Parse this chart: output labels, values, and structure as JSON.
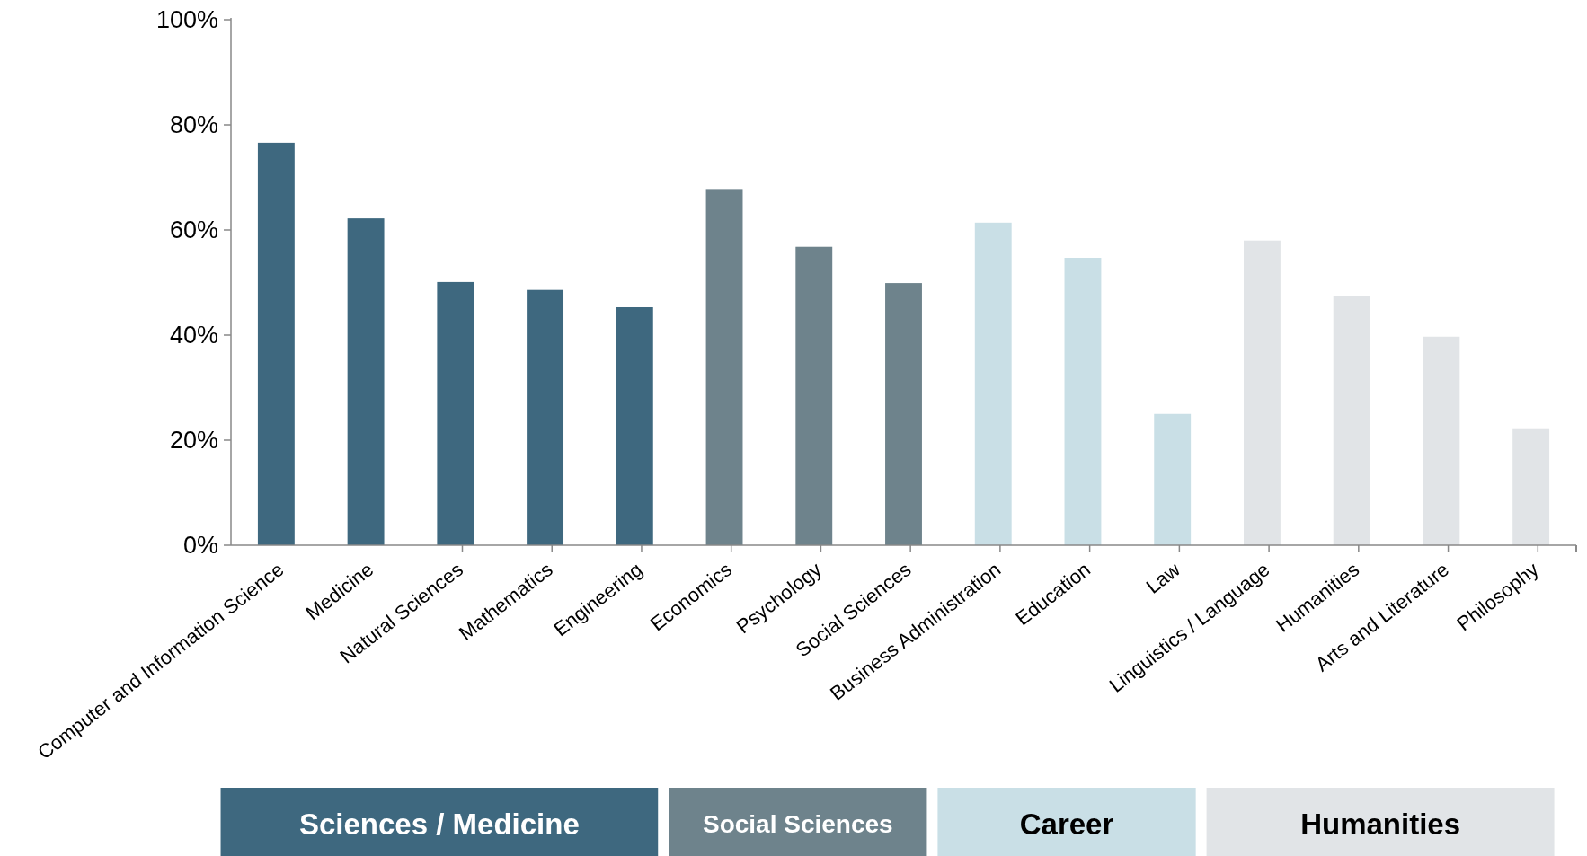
{
  "chart_data": {
    "type": "bar",
    "categories": [
      "Computer and Information Science",
      "Medicine",
      "Natural Sciences",
      "Mathematics",
      "Engineering",
      "Economics",
      "Psychology",
      "Social Sciences",
      "Business Administration",
      "Education",
      "Law",
      "Linguistics / Language",
      "Humanities",
      "Arts and Literature",
      "Philosophy"
    ],
    "series": [
      {
        "name": "Sciences / Medicine",
        "color": "#3e687f",
        "values": [
          76.6,
          62.2,
          50.1,
          48.6,
          45.3,
          null,
          null,
          null,
          null,
          null,
          null,
          null,
          null,
          null,
          null
        ]
      },
      {
        "name": "Social Sciences",
        "color": "#6e838c",
        "values": [
          null,
          null,
          null,
          null,
          null,
          67.8,
          56.8,
          49.9,
          null,
          null,
          null,
          null,
          null,
          null,
          null
        ]
      },
      {
        "name": "Career",
        "color": "#c9dfe6",
        "values": [
          null,
          null,
          null,
          null,
          null,
          null,
          null,
          null,
          61.4,
          54.7,
          25.0,
          null,
          null,
          null,
          null
        ]
      },
      {
        "name": "Humanities",
        "color": "#e1e4e7",
        "values": [
          null,
          null,
          null,
          null,
          null,
          null,
          null,
          null,
          null,
          null,
          null,
          58.0,
          47.4,
          39.7,
          22.1
        ]
      }
    ],
    "ylim": [
      0,
      100
    ],
    "yticks": [
      {
        "value": 0,
        "label": "0%"
      },
      {
        "value": 20,
        "label": "20%"
      },
      {
        "value": 40,
        "label": "40%"
      },
      {
        "value": 60,
        "label": "60%"
      },
      {
        "value": 80,
        "label": "80%"
      },
      {
        "value": 100,
        "label": "100%"
      }
    ],
    "legend": "bottom",
    "grid": false
  }
}
